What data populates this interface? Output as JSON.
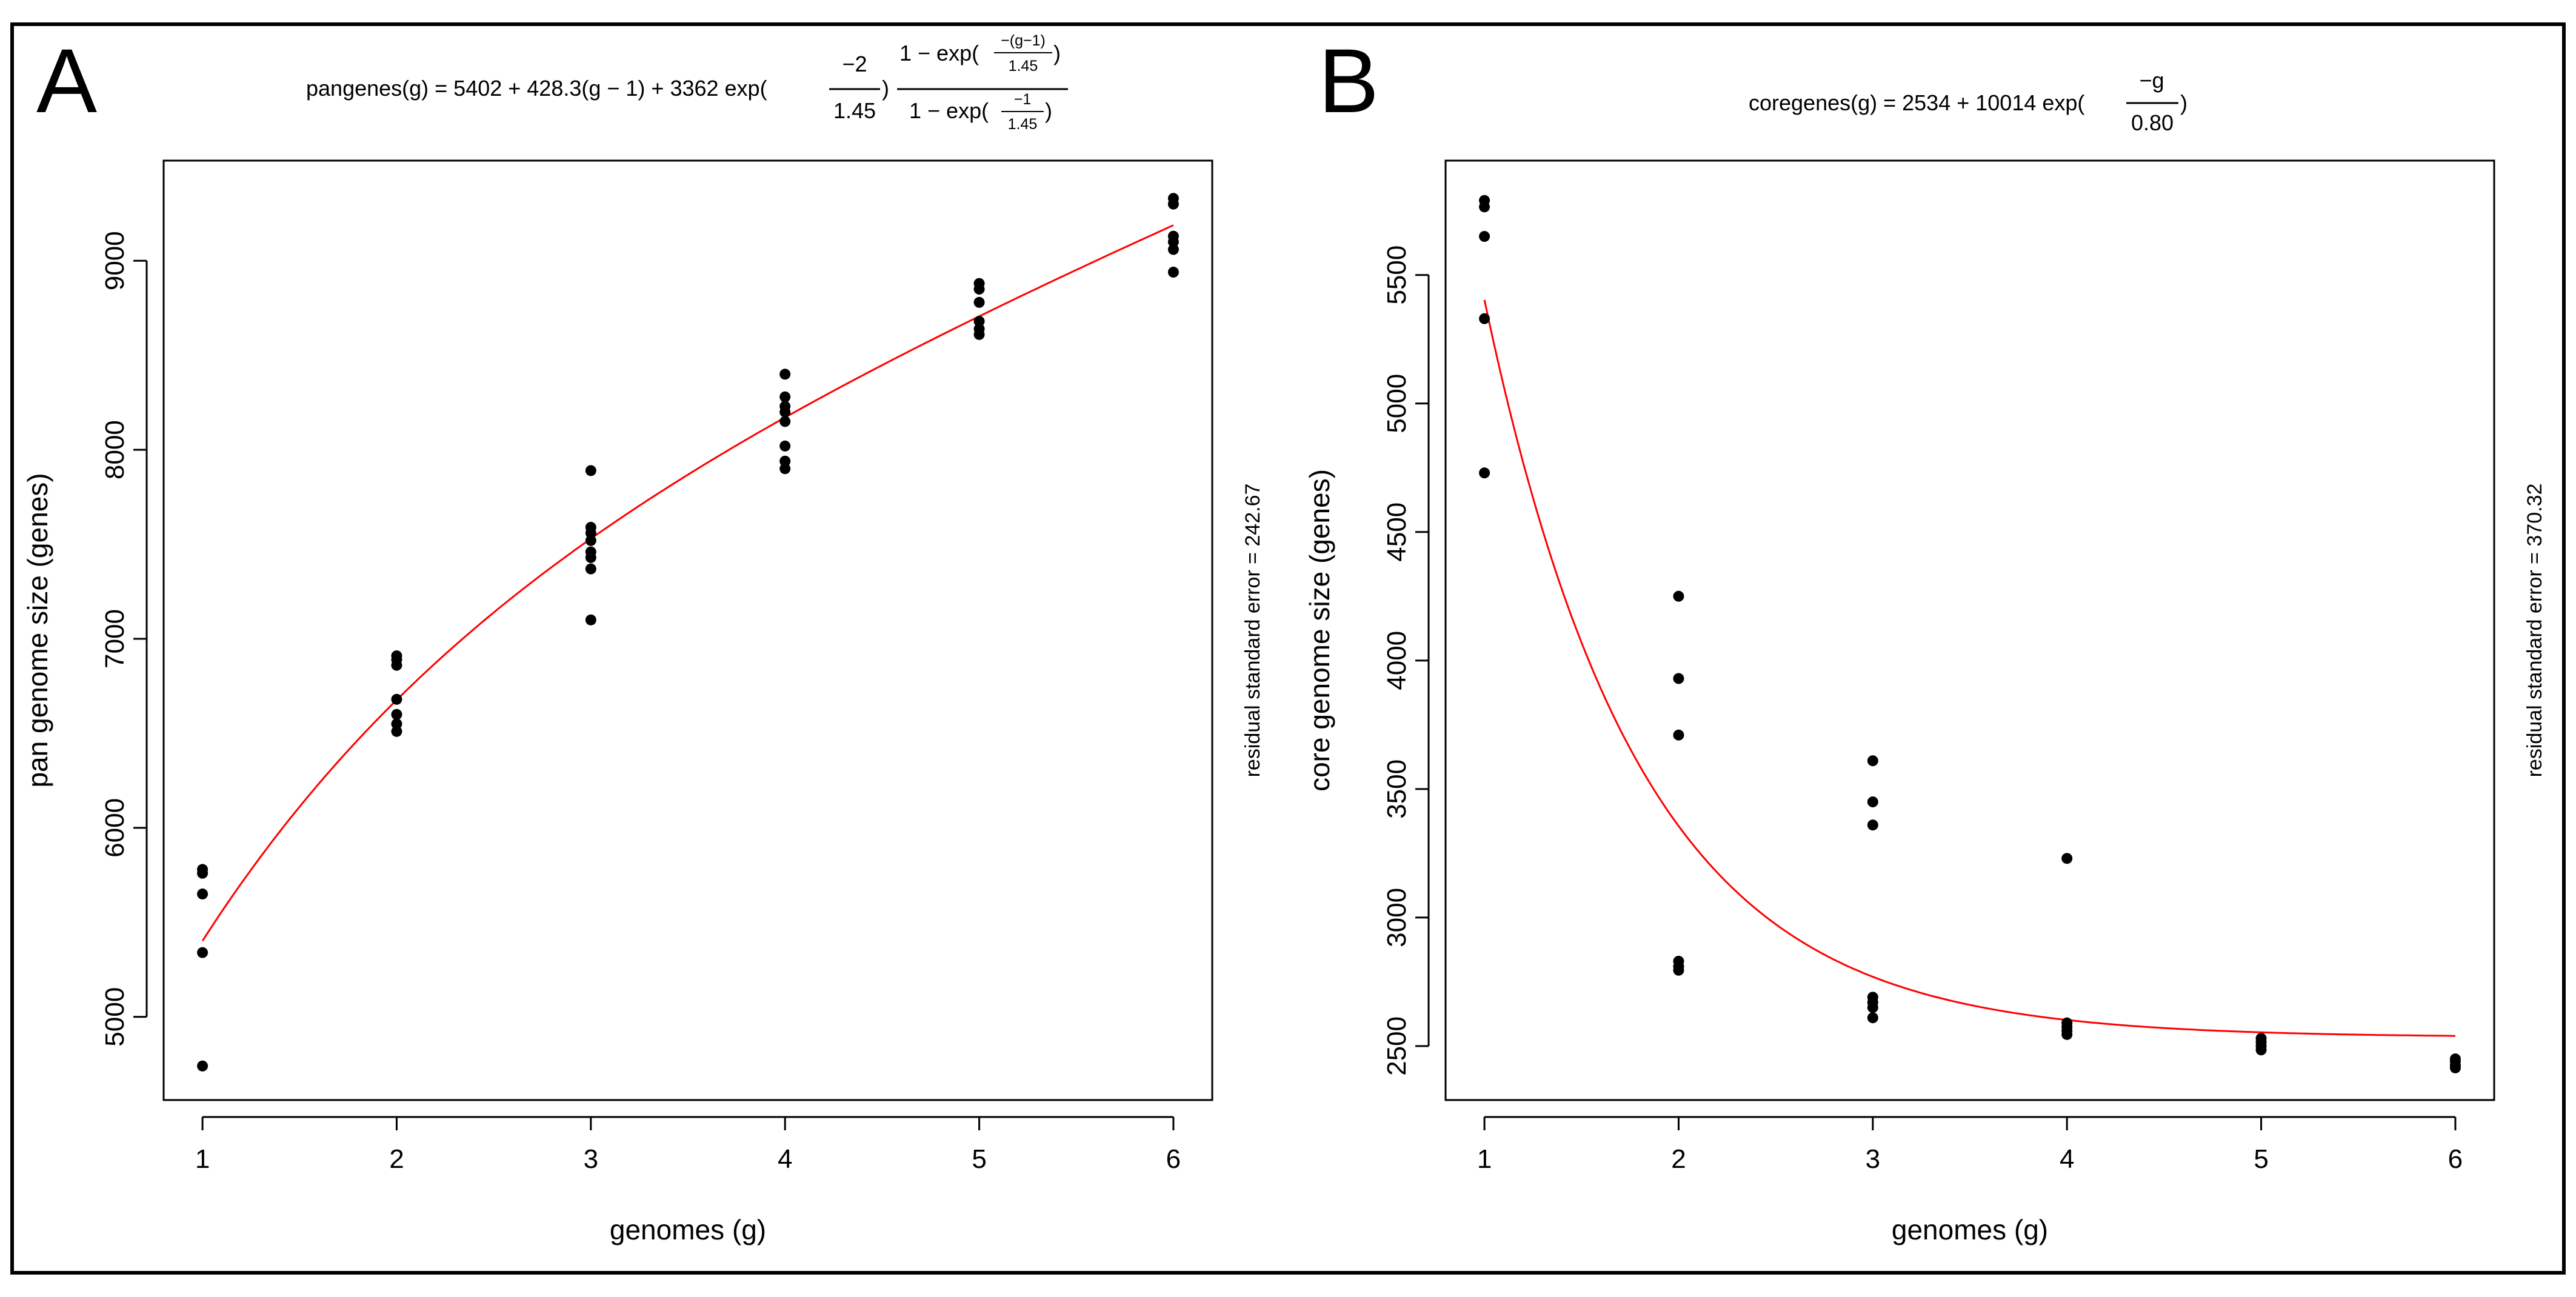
{
  "colors": {
    "fit_line": "#ff0000",
    "points": "#000000",
    "frame": "#000000"
  },
  "chart_data": [
    {
      "type": "scatter",
      "panel_label": "A",
      "formula": {
        "lhs": "pangenes(g) = 5402 + 428.3(g − 1) + 3362 exp(",
        "frac1_num": "−2",
        "frac1_den": "1.45",
        "frac2_num_pre": "1 − exp(",
        "frac2_num_small_num": "−(g−1)",
        "frac2_num_small_den": "1.45",
        "frac2_num_post": ")",
        "frac2_den_pre": "1 − exp(",
        "frac2_den_small_num": "−1",
        "frac2_den_small_den": "1.45",
        "frac2_den_post": ")",
        "close": ")"
      },
      "xlabel": "genomes (g)",
      "ylabel": "pan genome size (genes)",
      "side_note": "residual standard error = 242.67",
      "xlim": [
        0.8,
        6.2
      ],
      "ylim": [
        4560,
        9530
      ],
      "xticks": [
        1,
        2,
        3,
        4,
        5,
        6
      ],
      "yticks": [
        5000,
        6000,
        7000,
        8000,
        9000
      ],
      "fit": {
        "kind": "pan",
        "a": 5402,
        "b": 428.3,
        "c": 3362,
        "tau": 1.45,
        "x_range": [
          1,
          6
        ]
      },
      "points": [
        {
          "x": 1,
          "y": 5780
        },
        {
          "x": 1,
          "y": 5760
        },
        {
          "x": 1,
          "y": 5650
        },
        {
          "x": 1,
          "y": 5340
        },
        {
          "x": 1,
          "y": 4740
        },
        {
          "x": 2,
          "y": 6910
        },
        {
          "x": 2,
          "y": 6890
        },
        {
          "x": 2,
          "y": 6860
        },
        {
          "x": 2,
          "y": 6680
        },
        {
          "x": 2,
          "y": 6600
        },
        {
          "x": 2,
          "y": 6550
        },
        {
          "x": 2,
          "y": 6510
        },
        {
          "x": 3,
          "y": 7890
        },
        {
          "x": 3,
          "y": 7590
        },
        {
          "x": 3,
          "y": 7560
        },
        {
          "x": 3,
          "y": 7520
        },
        {
          "x": 3,
          "y": 7460
        },
        {
          "x": 3,
          "y": 7430
        },
        {
          "x": 3,
          "y": 7370
        },
        {
          "x": 3,
          "y": 7100
        },
        {
          "x": 4,
          "y": 8400
        },
        {
          "x": 4,
          "y": 8280
        },
        {
          "x": 4,
          "y": 8230
        },
        {
          "x": 4,
          "y": 8200
        },
        {
          "x": 4,
          "y": 8150
        },
        {
          "x": 4,
          "y": 8020
        },
        {
          "x": 4,
          "y": 7940
        },
        {
          "x": 4,
          "y": 7900
        },
        {
          "x": 5,
          "y": 8880
        },
        {
          "x": 5,
          "y": 8850
        },
        {
          "x": 5,
          "y": 8780
        },
        {
          "x": 5,
          "y": 8680
        },
        {
          "x": 5,
          "y": 8640
        },
        {
          "x": 5,
          "y": 8610
        },
        {
          "x": 6,
          "y": 9330
        },
        {
          "x": 6,
          "y": 9300
        },
        {
          "x": 6,
          "y": 9130
        },
        {
          "x": 6,
          "y": 9100
        },
        {
          "x": 6,
          "y": 9060
        },
        {
          "x": 6,
          "y": 8940
        }
      ]
    },
    {
      "type": "scatter",
      "panel_label": "B",
      "formula": {
        "lhs": "coregenes(g) = 2534 + 10014 exp(",
        "frac1_num": "−g",
        "frac1_den": "0.80",
        "close": ")"
      },
      "xlabel": "genomes (g)",
      "ylabel": "core genome size (genes)",
      "side_note": "residual standard error = 370.32",
      "xlim": [
        0.8,
        6.2
      ],
      "ylim": [
        2290,
        5945
      ],
      "xticks": [
        1,
        2,
        3,
        4,
        5,
        6
      ],
      "yticks": [
        2500,
        3000,
        3500,
        4000,
        4500,
        5000,
        5500
      ],
      "fit": {
        "kind": "core",
        "a": 2534,
        "b": 10014,
        "tau": 0.8,
        "x_range": [
          1,
          6
        ]
      },
      "points": [
        {
          "x": 1,
          "y": 5790
        },
        {
          "x": 1,
          "y": 5765
        },
        {
          "x": 1,
          "y": 5650
        },
        {
          "x": 1,
          "y": 5330
        },
        {
          "x": 1,
          "y": 4730
        },
        {
          "x": 2,
          "y": 4250
        },
        {
          "x": 2,
          "y": 3930
        },
        {
          "x": 2,
          "y": 3710
        },
        {
          "x": 2,
          "y": 2830
        },
        {
          "x": 2,
          "y": 2810
        },
        {
          "x": 2,
          "y": 2795
        },
        {
          "x": 3,
          "y": 3610
        },
        {
          "x": 3,
          "y": 3450
        },
        {
          "x": 3,
          "y": 3360
        },
        {
          "x": 3,
          "y": 2690
        },
        {
          "x": 3,
          "y": 2670
        },
        {
          "x": 3,
          "y": 2650
        },
        {
          "x": 3,
          "y": 2610
        },
        {
          "x": 4,
          "y": 3230
        },
        {
          "x": 4,
          "y": 2590
        },
        {
          "x": 4,
          "y": 2575
        },
        {
          "x": 4,
          "y": 2560
        },
        {
          "x": 4,
          "y": 2545
        },
        {
          "x": 5,
          "y": 2530
        },
        {
          "x": 5,
          "y": 2515
        },
        {
          "x": 5,
          "y": 2500
        },
        {
          "x": 5,
          "y": 2485
        },
        {
          "x": 6,
          "y": 2450
        },
        {
          "x": 6,
          "y": 2440
        },
        {
          "x": 6,
          "y": 2425
        },
        {
          "x": 6,
          "y": 2415
        }
      ]
    }
  ]
}
